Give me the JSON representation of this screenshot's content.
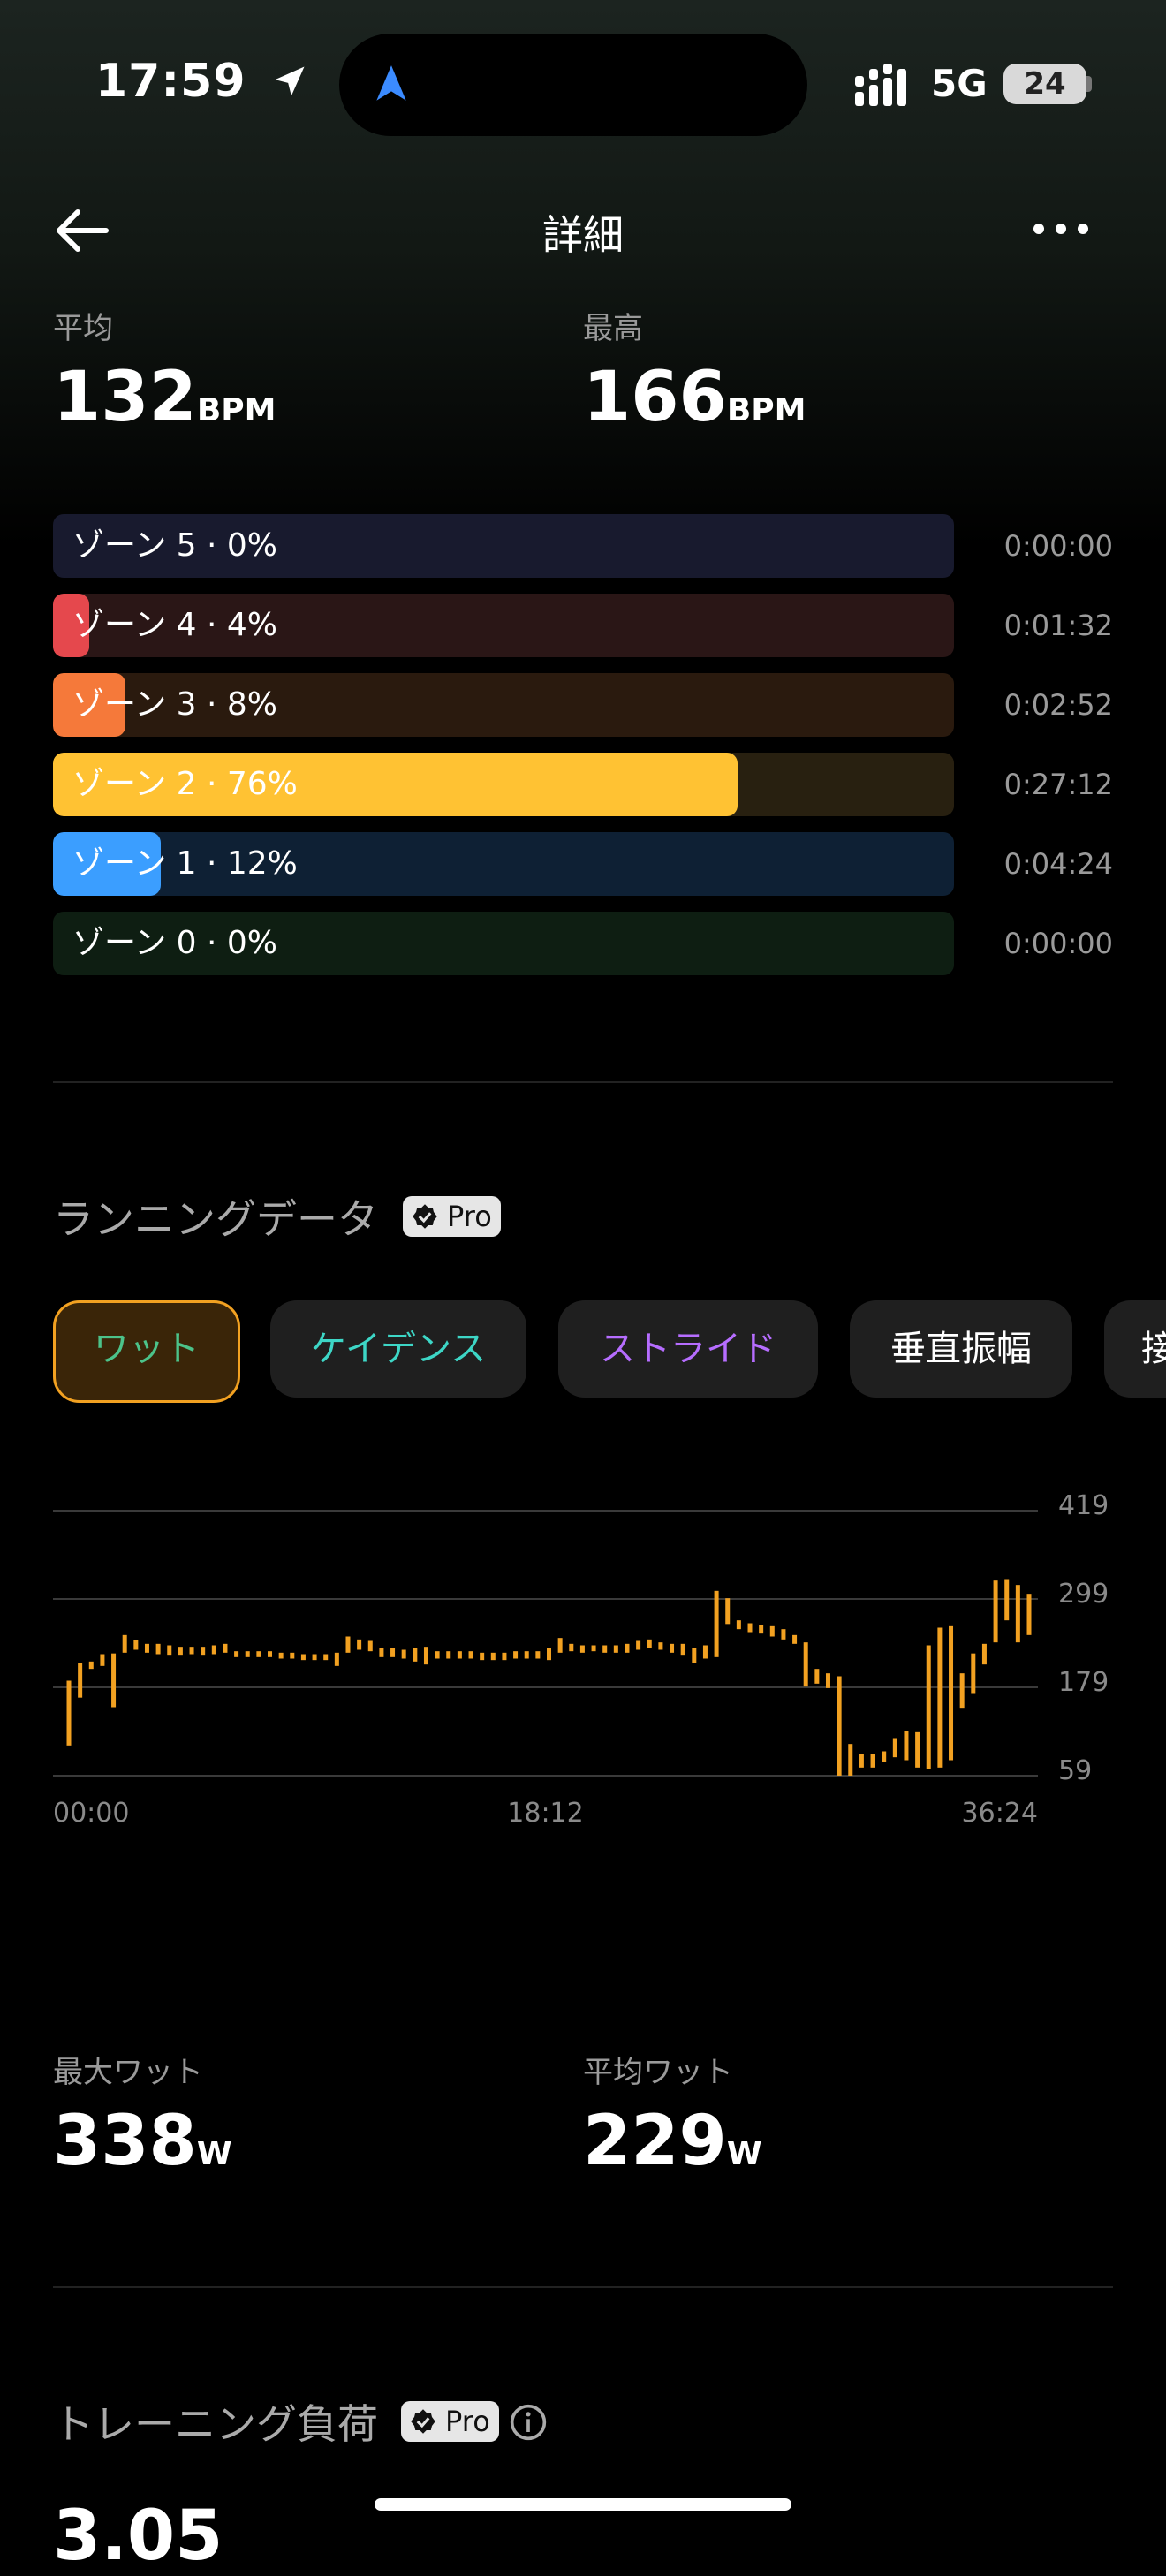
{
  "status_bar": {
    "time": "17:59",
    "network": "5G",
    "battery": "24"
  },
  "nav": {
    "title": "詳細"
  },
  "heart_rate": {
    "avg_label": "平均",
    "avg_value": "132",
    "avg_unit": "BPM",
    "max_label": "最高",
    "max_value": "166",
    "max_unit": "BPM"
  },
  "zones": [
    {
      "label": "ゾーン 5 · 0%",
      "percent": 0,
      "time": "0:00:00",
      "color": "#5b5bd6",
      "track": "#181a2e"
    },
    {
      "label": "ゾーン 4 · 4%",
      "percent": 4,
      "time": "0:01:32",
      "color": "#e5484d",
      "track": "#2a1616"
    },
    {
      "label": "ゾーン 3 · 8%",
      "percent": 8,
      "time": "0:02:52",
      "color": "#f5793a",
      "track": "#2a1a0e"
    },
    {
      "label": "ゾーン 2 · 76%",
      "percent": 76,
      "time": "0:27:12",
      "color": "#ffc233",
      "track": "#282010"
    },
    {
      "label": "ゾーン 1 · 12%",
      "percent": 12,
      "time": "0:04:24",
      "color": "#3b9eff",
      "track": "#0e2034"
    },
    {
      "label": "ゾーン 0 · 0%",
      "percent": 0,
      "time": "0:00:00",
      "color": "#30a46c",
      "track": "#0e1e12"
    }
  ],
  "running": {
    "title": "ランニングデータ",
    "pro_label": "Pro",
    "chips": [
      {
        "label": "ワット",
        "color": "#f2a121",
        "active": true
      },
      {
        "label": "ケイデンス",
        "color": "#4cc38a",
        "active": false
      },
      {
        "label": "ストライド",
        "color": "#52a9ff",
        "active": false
      },
      {
        "label": "垂直振幅",
        "color": "#3dd6c6",
        "active": false
      },
      {
        "label": "接",
        "color": "#b66dff",
        "active": false
      }
    ]
  },
  "chart_data": {
    "type": "bar",
    "y_ticks": [
      "419",
      "299",
      "179",
      "59"
    ],
    "ylim": [
      59,
      419
    ],
    "x_ticks": [
      "00:00",
      "18:12",
      "36:24"
    ],
    "color": "#f2a121",
    "bars": [
      {
        "low": 100,
        "high": 188
      },
      {
        "low": 165,
        "high": 212
      },
      {
        "low": 204,
        "high": 214
      },
      {
        "low": 208,
        "high": 224
      },
      {
        "low": 152,
        "high": 225
      },
      {
        "low": 226,
        "high": 250
      },
      {
        "low": 230,
        "high": 243
      },
      {
        "low": 226,
        "high": 238
      },
      {
        "low": 224,
        "high": 238
      },
      {
        "low": 222,
        "high": 236
      },
      {
        "low": 222,
        "high": 234
      },
      {
        "low": 224,
        "high": 234
      },
      {
        "low": 222,
        "high": 234
      },
      {
        "low": 224,
        "high": 236
      },
      {
        "low": 226,
        "high": 238
      },
      {
        "low": 220,
        "high": 228
      },
      {
        "low": 220,
        "high": 228
      },
      {
        "low": 220,
        "high": 228
      },
      {
        "low": 220,
        "high": 228
      },
      {
        "low": 218,
        "high": 226
      },
      {
        "low": 218,
        "high": 226
      },
      {
        "low": 216,
        "high": 224
      },
      {
        "low": 216,
        "high": 224
      },
      {
        "low": 216,
        "high": 224
      },
      {
        "low": 208,
        "high": 226
      },
      {
        "low": 226,
        "high": 248
      },
      {
        "low": 230,
        "high": 244
      },
      {
        "low": 228,
        "high": 242
      },
      {
        "low": 220,
        "high": 232
      },
      {
        "low": 220,
        "high": 232
      },
      {
        "low": 218,
        "high": 230
      },
      {
        "low": 214,
        "high": 232
      },
      {
        "low": 210,
        "high": 234
      },
      {
        "low": 218,
        "high": 228
      },
      {
        "low": 218,
        "high": 228
      },
      {
        "low": 218,
        "high": 228
      },
      {
        "low": 218,
        "high": 228
      },
      {
        "low": 216,
        "high": 226
      },
      {
        "low": 216,
        "high": 226
      },
      {
        "low": 216,
        "high": 226
      },
      {
        "low": 218,
        "high": 228
      },
      {
        "low": 218,
        "high": 228
      },
      {
        "low": 218,
        "high": 228
      },
      {
        "low": 216,
        "high": 232
      },
      {
        "low": 226,
        "high": 246
      },
      {
        "low": 228,
        "high": 238
      },
      {
        "low": 226,
        "high": 236
      },
      {
        "low": 228,
        "high": 236
      },
      {
        "low": 226,
        "high": 236
      },
      {
        "low": 226,
        "high": 236
      },
      {
        "low": 226,
        "high": 238
      },
      {
        "low": 230,
        "high": 242
      },
      {
        "low": 232,
        "high": 244
      },
      {
        "low": 230,
        "high": 240
      },
      {
        "low": 226,
        "high": 238
      },
      {
        "low": 222,
        "high": 238
      },
      {
        "low": 212,
        "high": 232
      },
      {
        "low": 218,
        "high": 236
      },
      {
        "low": 220,
        "high": 310
      },
      {
        "low": 265,
        "high": 300
      },
      {
        "low": 258,
        "high": 270
      },
      {
        "low": 254,
        "high": 266
      },
      {
        "low": 252,
        "high": 264
      },
      {
        "low": 248,
        "high": 262
      },
      {
        "low": 244,
        "high": 258
      },
      {
        "low": 238,
        "high": 250
      },
      {
        "low": 180,
        "high": 240
      },
      {
        "low": 184,
        "high": 204
      },
      {
        "low": 178,
        "high": 198
      },
      {
        "low": 59,
        "high": 194
      },
      {
        "low": 59,
        "high": 102
      },
      {
        "low": 70,
        "high": 88
      },
      {
        "low": 70,
        "high": 88
      },
      {
        "low": 78,
        "high": 92
      },
      {
        "low": 84,
        "high": 110
      },
      {
        "low": 80,
        "high": 120
      },
      {
        "low": 70,
        "high": 118
      },
      {
        "low": 68,
        "high": 236
      },
      {
        "low": 70,
        "high": 260
      },
      {
        "low": 80,
        "high": 262
      },
      {
        "low": 150,
        "high": 198
      },
      {
        "low": 170,
        "high": 225
      },
      {
        "low": 210,
        "high": 238
      },
      {
        "low": 240,
        "high": 324
      },
      {
        "low": 270,
        "high": 326
      },
      {
        "low": 240,
        "high": 318
      },
      {
        "low": 250,
        "high": 306
      }
    ]
  },
  "power_stats": {
    "max_label": "最大ワット",
    "max_value": "338",
    "max_unit": "W",
    "avg_label": "平均ワット",
    "avg_value": "229",
    "avg_unit": "W"
  },
  "training": {
    "title": "トレーニング負荷",
    "pro_label": "Pro",
    "value": "3.05"
  }
}
